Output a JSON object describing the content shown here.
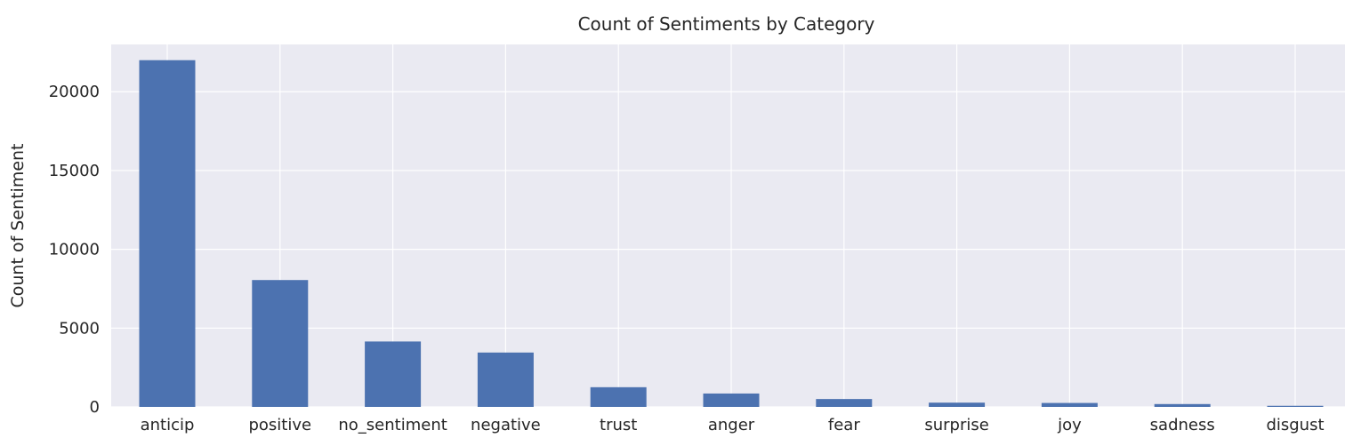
{
  "chart_data": {
    "type": "bar",
    "title": "Count of Sentiments by Category",
    "xlabel": "",
    "ylabel": "Count of Sentiment",
    "categories": [
      "anticip",
      "positive",
      "no_sentiment",
      "negative",
      "trust",
      "anger",
      "fear",
      "surprise",
      "joy",
      "sadness",
      "disgust"
    ],
    "values": [
      22000,
      8050,
      4150,
      3450,
      1250,
      850,
      500,
      270,
      250,
      180,
      70
    ],
    "ylim": [
      0,
      23000
    ],
    "yticks": [
      0,
      5000,
      10000,
      15000,
      20000
    ],
    "grid": true,
    "colors": {
      "bar": "#4c72b0",
      "plot_background": "#eaeaf2",
      "grid": "#ffffff",
      "text": "#262626"
    }
  }
}
